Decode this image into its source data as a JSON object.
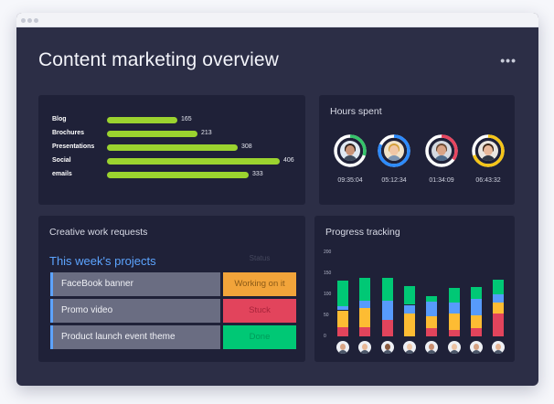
{
  "window": {
    "more_icon": "more-horizontal-icon"
  },
  "header": {
    "title": "Content marketing overview",
    "more_symbol": "•••"
  },
  "content_panel": {
    "items": [
      {
        "label": "Blog",
        "value": "165",
        "amount": 165
      },
      {
        "label": "Brochures",
        "value": "213",
        "amount": 213
      },
      {
        "label": "Presentations",
        "value": "308",
        "amount": 308
      },
      {
        "label": "Social",
        "value": "406",
        "amount": 406
      },
      {
        "label": "emails",
        "value": "333",
        "amount": 333
      }
    ],
    "bar_color": "#9bd32f"
  },
  "hours_panel": {
    "title": "Hours spent",
    "people": [
      {
        "time": "09:35:04",
        "ring_color": "#35c46a",
        "progress": 0.3
      },
      {
        "time": "05:12:34",
        "ring_color": "#2c8bff",
        "progress": 0.82
      },
      {
        "time": "01:34:09",
        "ring_color": "#e8455f",
        "progress": 0.35
      },
      {
        "time": "06:43:32",
        "ring_color": "#f5c518",
        "progress": 0.7
      }
    ]
  },
  "requests_panel": {
    "title": "Creative work requests",
    "subtitle": "This week's projects",
    "status_header": "Status",
    "rows": [
      {
        "name": "FaceBook banner",
        "status": "Working on it",
        "status_color": "#f2a43a",
        "text_color": "#8b5a17"
      },
      {
        "name": "Promo video",
        "status": "Stuck",
        "status_color": "#e2445c",
        "text_color": "#a8243b"
      },
      {
        "name": "Product launch event theme",
        "status": "Done",
        "status_color": "#00c875",
        "text_color": "#009a59"
      }
    ]
  },
  "progress_panel": {
    "title": "Progress tracking",
    "y_ticks": [
      "200",
      "150",
      "100",
      "50",
      "0"
    ],
    "colors": {
      "green": "#00c875",
      "blue": "#579bfc",
      "yellow": "#fdbc33",
      "red": "#e2445c"
    },
    "chart_data": {
      "type": "bar",
      "stacked": true,
      "series_order": [
        "red",
        "yellow",
        "blue",
        "green"
      ],
      "values": [
        {
          "red": 22,
          "yellow": 40,
          "blue": 10,
          "green": 60
        },
        {
          "red": 22,
          "yellow": 45,
          "blue": 18,
          "green": 55
        },
        {
          "red": 40,
          "yellow": 0,
          "blue": 45,
          "green": 55
        },
        {
          "red": 0,
          "yellow": 55,
          "blue": 20,
          "green": 45
        },
        {
          "red": 20,
          "yellow": 28,
          "blue": 35,
          "green": 12
        },
        {
          "red": 15,
          "yellow": 40,
          "blue": 25,
          "green": 35
        },
        {
          "red": 20,
          "yellow": 30,
          "blue": 40,
          "green": 28
        },
        {
          "red": 55,
          "yellow": 25,
          "blue": 20,
          "green": 35
        }
      ],
      "ylim": [
        0,
        200
      ]
    }
  }
}
